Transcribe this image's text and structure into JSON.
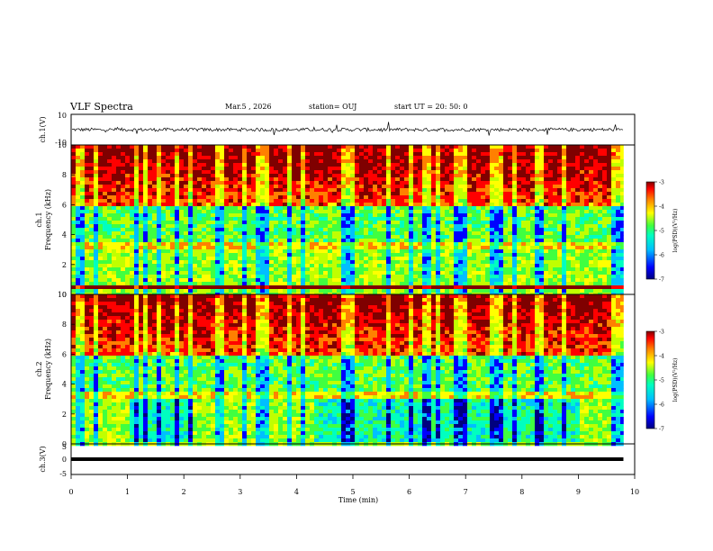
{
  "header": {
    "title": "VLF Spectra",
    "date": "Mar.5 , 2026",
    "station": "station= OUJ",
    "start_ut": "start UT = 20: 50: 0"
  },
  "colors": {
    "spectrogram_scale": [
      "#00007f",
      "#0000ff",
      "#00bfff",
      "#00ffc0",
      "#40ff40",
      "#c0ff00",
      "#ffff00",
      "#ff8000",
      "#ff0000",
      "#7f0000"
    ]
  },
  "chart_data": [
    {
      "type": "line",
      "ylabel": "ch.1(V)",
      "ylim": [
        -10,
        10
      ],
      "yticks": [
        "10",
        "-10"
      ],
      "xlim": [
        0,
        10
      ]
    },
    {
      "type": "heatmap",
      "ylabel_line1": "ch.1",
      "ylabel_line2": "Frequency (kHz)",
      "ylim": [
        0,
        10
      ],
      "yticks": [
        "0",
        "2",
        "4",
        "6",
        "8",
        "10"
      ],
      "xlim": [
        0,
        10
      ],
      "colorbar": {
        "label": "log(PSD)(V²/Hz)",
        "range": [
          -7,
          -3
        ],
        "ticks": [
          "-3",
          "-4",
          "-5",
          "-6",
          "-7"
        ]
      }
    },
    {
      "type": "heatmap",
      "ylabel_line1": "ch.2",
      "ylabel_line2": "Frequency (kHz)",
      "ylim": [
        0,
        10
      ],
      "yticks": [
        "0",
        "2",
        "4",
        "6",
        "8",
        "10"
      ],
      "xlim": [
        0,
        10
      ],
      "colorbar": {
        "label": "log(PSD)(V²/Hz)",
        "range": [
          -7,
          -3
        ],
        "ticks": [
          "-3",
          "-4",
          "-5",
          "-6",
          "-7"
        ]
      }
    },
    {
      "type": "line",
      "ylabel": "ch.3(V)",
      "ylim": [
        -5,
        5
      ],
      "yticks": [
        "5",
        "0",
        "-5"
      ],
      "x": [
        0,
        9.8
      ],
      "y": [
        0,
        0
      ],
      "xlabel": "Time (min)",
      "xticks": [
        "0",
        "1",
        "2",
        "3",
        "4",
        "5",
        "6",
        "7",
        "8",
        "9",
        "10"
      ],
      "xlim": [
        0,
        10
      ]
    }
  ]
}
